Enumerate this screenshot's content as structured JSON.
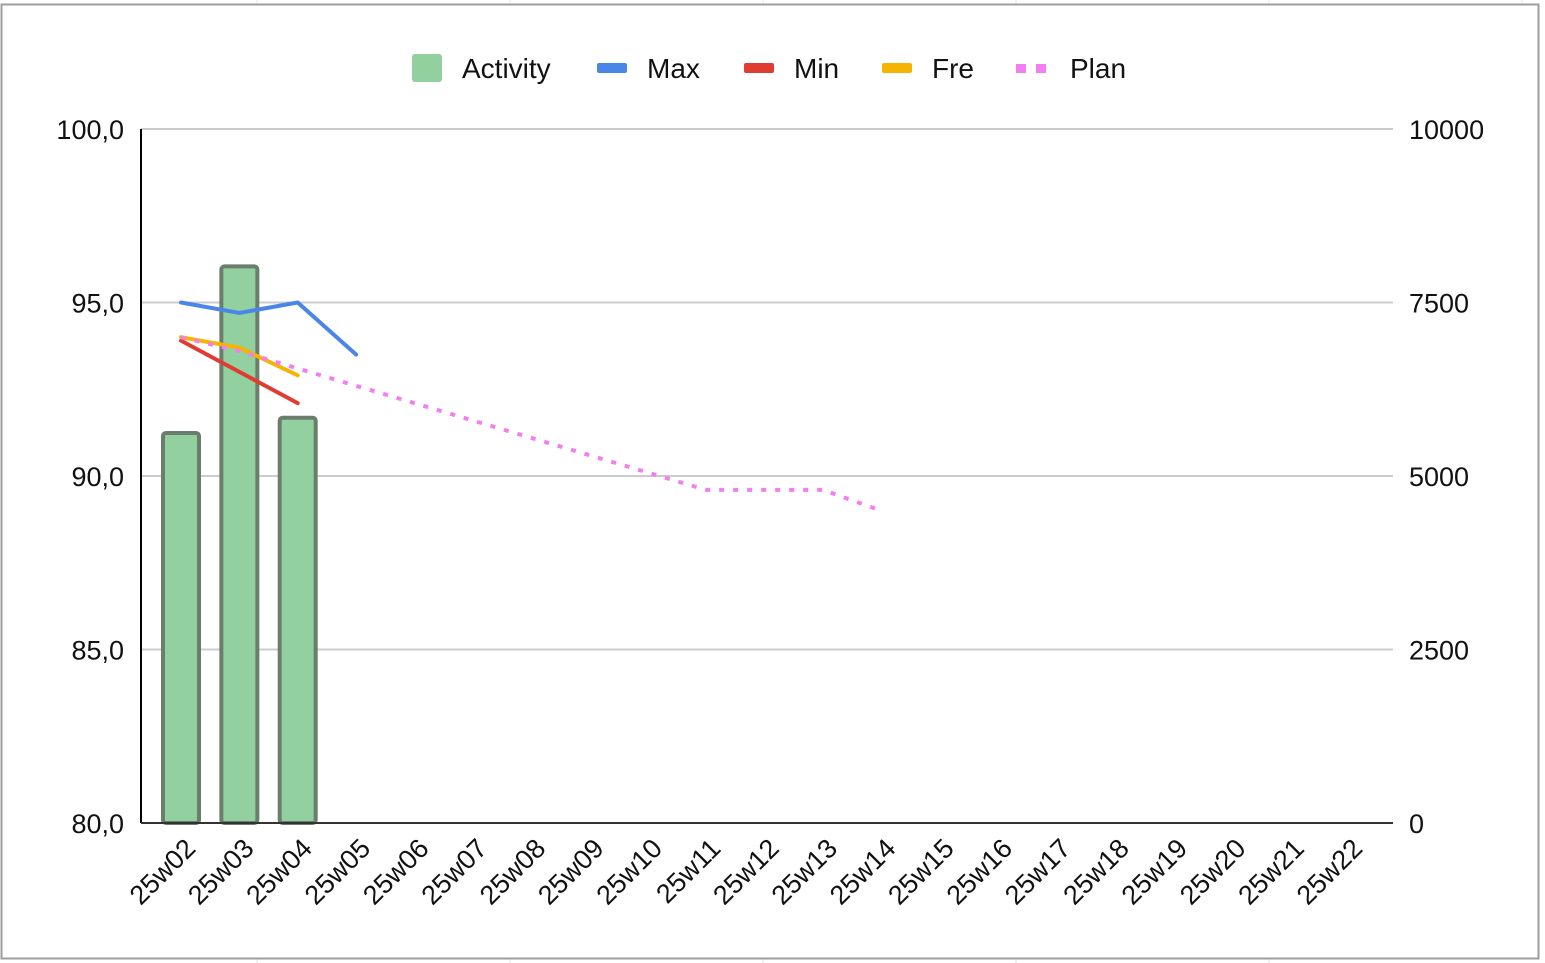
{
  "chart_data": {
    "type": "bar",
    "categories": [
      "25w02",
      "25w03",
      "25w04",
      "25w05",
      "25w06",
      "25w07",
      "25w08",
      "25w09",
      "25w10",
      "25w11",
      "25w12",
      "25w13",
      "25w14",
      "25w15",
      "25w16",
      "25w17",
      "25w18",
      "25w19",
      "25w20",
      "25w21",
      "25w22"
    ],
    "y_left": {
      "range": [
        80,
        100
      ],
      "ticks": [
        "80,0",
        "85,0",
        "90,0",
        "95,0",
        "100,0"
      ],
      "tick_values": [
        80,
        85,
        90,
        95,
        100
      ]
    },
    "y_right": {
      "range": [
        0,
        10000
      ],
      "ticks": [
        "0",
        "2500",
        "5000",
        "7500",
        "10000"
      ],
      "tick_values": [
        0,
        2500,
        5000,
        7500,
        10000
      ]
    },
    "grid": true,
    "legend_position": "top",
    "series": [
      {
        "name": "Activity",
        "kind": "bar",
        "axis": "right",
        "color": "#93d09f",
        "edge_color": "#6b7e6d",
        "values": [
          5620,
          8020,
          5840,
          null,
          null,
          null,
          null,
          null,
          null,
          null,
          null,
          null,
          null,
          null,
          null,
          null,
          null,
          null,
          null,
          null,
          null
        ]
      },
      {
        "name": "Max",
        "kind": "line",
        "axis": "left",
        "color": "#4a86e8",
        "dash": "solid",
        "values": [
          95.0,
          94.7,
          95.0,
          93.5,
          null,
          null,
          null,
          null,
          null,
          null,
          null,
          null,
          null,
          null,
          null,
          null,
          null,
          null,
          null,
          null,
          null
        ]
      },
      {
        "name": "Min",
        "kind": "line",
        "axis": "left",
        "color": "#e03c31",
        "dash": "solid",
        "values": [
          93.9,
          93.0,
          92.1,
          null,
          null,
          null,
          null,
          null,
          null,
          null,
          null,
          null,
          null,
          null,
          null,
          null,
          null,
          null,
          null,
          null,
          null
        ]
      },
      {
        "name": "Fre",
        "kind": "line",
        "axis": "left",
        "color": "#f6b400",
        "dash": "solid",
        "values": [
          94.0,
          93.7,
          92.9,
          null,
          null,
          null,
          null,
          null,
          null,
          null,
          null,
          null,
          null,
          null,
          null,
          null,
          null,
          null,
          null,
          null,
          null
        ]
      },
      {
        "name": "Plan",
        "kind": "line",
        "axis": "left",
        "color": "#f27ff0",
        "dash": "dotted",
        "values": [
          94.0,
          93.6,
          93.1,
          92.6,
          92.1,
          91.6,
          91.1,
          90.6,
          90.1,
          89.6,
          89.6,
          89.6,
          89.0,
          null,
          null,
          null,
          null,
          null,
          null,
          null,
          null
        ]
      }
    ]
  }
}
